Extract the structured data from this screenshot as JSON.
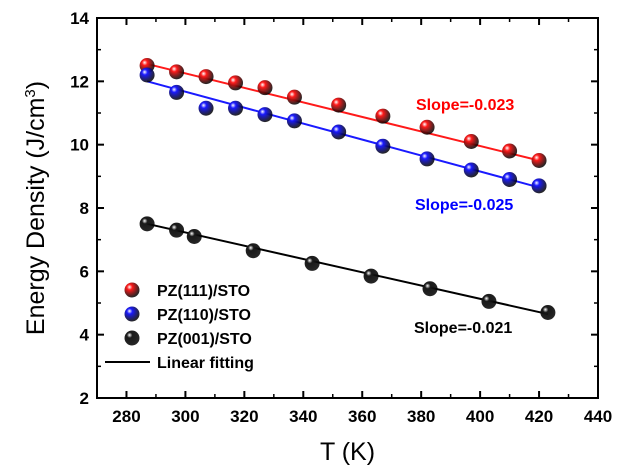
{
  "chart_data": {
    "type": "scatter",
    "xlabel": "T (K)",
    "ylabel": "Energy Density (J/cm3)",
    "ylabel_main": "Energy Density (J/cm",
    "ylabel_sup": "3",
    "ylabel_end": ")",
    "xlim": [
      270,
      440
    ],
    "ylim": [
      2,
      14
    ],
    "xticks": [
      280,
      300,
      320,
      340,
      360,
      380,
      400,
      420,
      440
    ],
    "yticks": [
      2,
      4,
      6,
      8,
      10,
      12,
      14
    ],
    "grid": false,
    "legend_position": "bottom-left",
    "series": [
      {
        "name": "PZ(111)/STO",
        "color": "#ff1a1a",
        "x": [
          287,
          297,
          307,
          317,
          327,
          337,
          352,
          367,
          382,
          397,
          410,
          420
        ],
        "y": [
          12.5,
          12.3,
          12.15,
          11.95,
          11.8,
          11.5,
          11.25,
          10.9,
          10.55,
          10.1,
          9.8,
          9.5
        ],
        "fit": {
          "x": [
            287,
            420
          ],
          "y": [
            12.55,
            9.5
          ]
        },
        "slope_label": "Slope=-0.023"
      },
      {
        "name": "PZ(110)/STO",
        "color": "#1a1aff",
        "x": [
          287,
          297,
          307,
          317,
          327,
          337,
          352,
          367,
          382,
          397,
          410,
          420
        ],
        "y": [
          12.2,
          11.65,
          11.15,
          11.15,
          10.95,
          10.75,
          10.4,
          9.95,
          9.55,
          9.2,
          8.9,
          8.7
        ],
        "fit": {
          "x": [
            287,
            420
          ],
          "y": [
            12.0,
            8.65
          ]
        },
        "slope_label": "Slope=-0.025"
      },
      {
        "name": "PZ(001)/STO",
        "color": "#1a1a1a",
        "x": [
          287,
          297,
          303,
          323,
          343,
          363,
          383,
          403,
          423
        ],
        "y": [
          7.5,
          7.3,
          7.1,
          6.65,
          6.25,
          5.85,
          5.45,
          5.05,
          4.7
        ],
        "fit": {
          "x": [
            287,
            423
          ],
          "y": [
            7.5,
            4.65
          ]
        },
        "slope_label": "Slope=-0.021"
      }
    ],
    "legend_fit_label": "Linear fitting"
  }
}
